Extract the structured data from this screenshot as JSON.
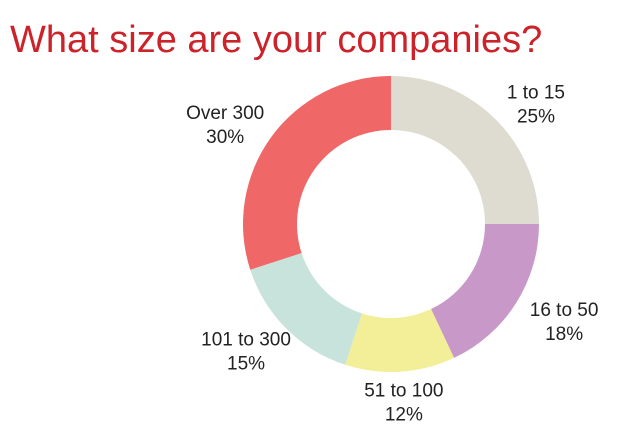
{
  "chart_data": {
    "type": "donut",
    "title": "What size are your companies?",
    "categories": [
      "1 to 15",
      "16 to 50",
      "51 to 100",
      "101 to 300",
      "Over 300"
    ],
    "values": [
      25,
      18,
      12,
      15,
      30
    ],
    "value_labels": [
      "25%",
      "18%",
      "12%",
      "15%",
      "30%"
    ],
    "colors": [
      "#dedcd1",
      "#c899c8",
      "#f3ef99",
      "#c8e3db",
      "#ef6767"
    ]
  }
}
